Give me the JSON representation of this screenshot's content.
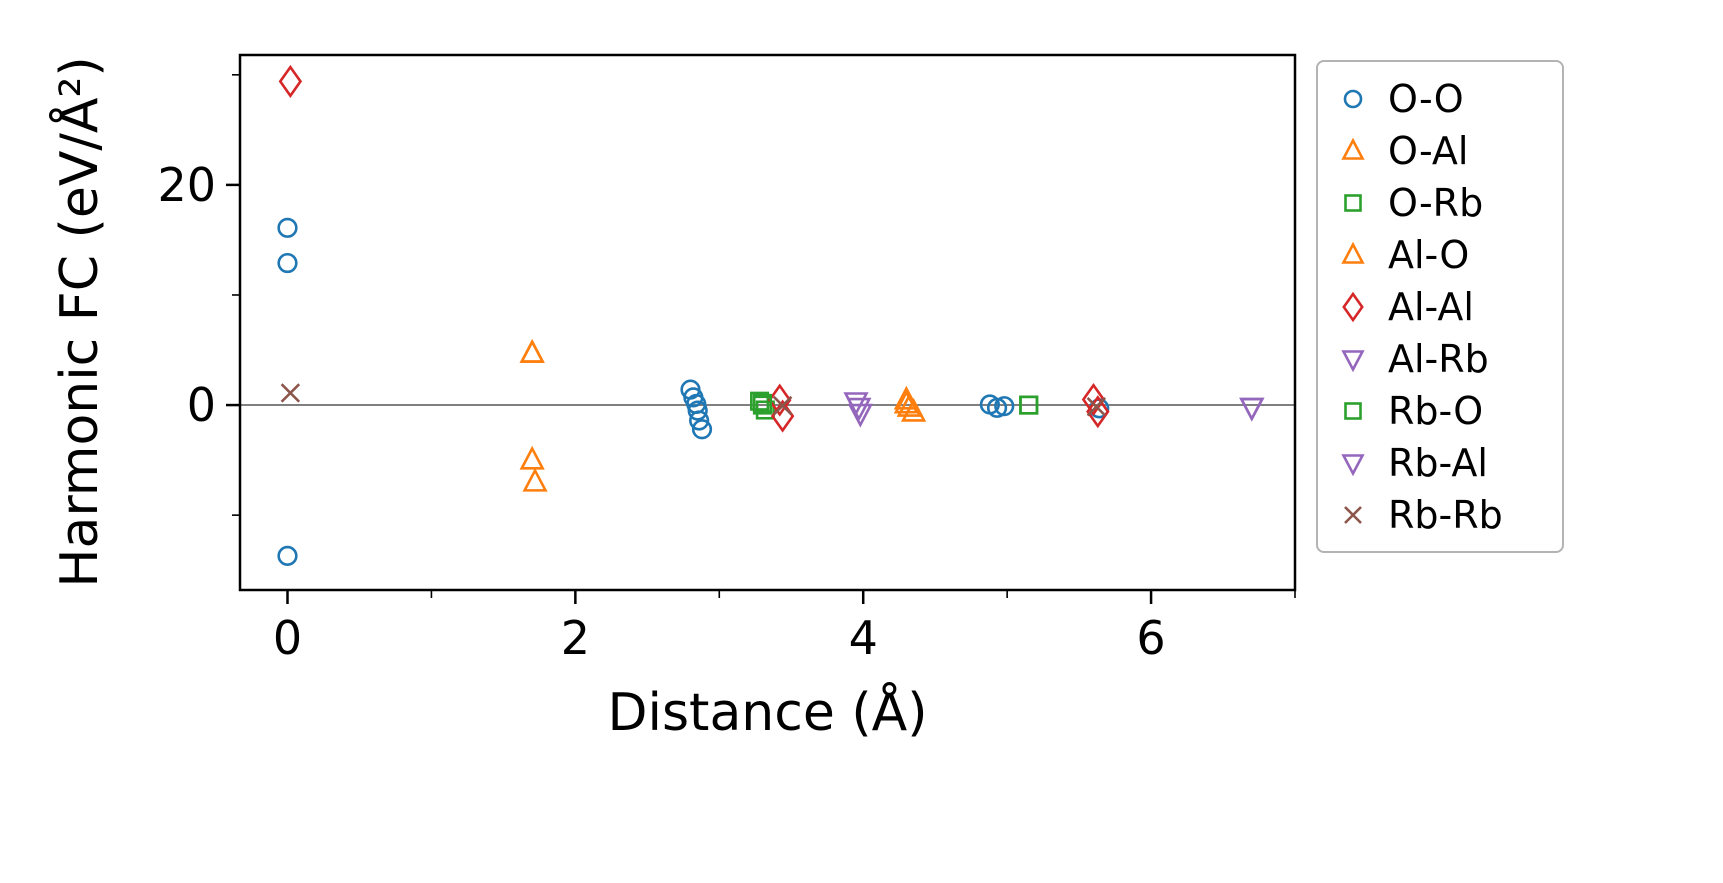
{
  "chart_data": {
    "type": "scatter",
    "title": "",
    "xlabel": "Distance (Å)",
    "ylabel": "Harmonic FC (eV/Å²)",
    "xlim": [
      -0.33,
      7.0
    ],
    "ylim": [
      -16.8,
      31.8
    ],
    "x_ticks": [
      {
        "value": 0,
        "label": "0"
      },
      {
        "value": 2,
        "label": "2"
      },
      {
        "value": 4,
        "label": "4"
      },
      {
        "value": 6,
        "label": "6"
      }
    ],
    "x_minor_ticks": [
      1,
      3,
      5,
      7
    ],
    "y_ticks": [
      {
        "value": 0,
        "label": "0"
      },
      {
        "value": 20,
        "label": "20"
      }
    ],
    "y_minor_ticks": [
      -10,
      10,
      30
    ],
    "grid": false,
    "zero_line": true,
    "zero_line_color": "#808080",
    "axis_color": "#000000",
    "legend_position": "outside-right",
    "series": [
      {
        "name": "O-O",
        "marker": "circle",
        "color": "#1f77b4",
        "points": [
          [
            0.0,
            16.1
          ],
          [
            0.0,
            12.9
          ],
          [
            0.0,
            -13.7
          ],
          [
            2.8,
            1.4
          ],
          [
            2.82,
            0.7
          ],
          [
            2.84,
            0.1
          ],
          [
            2.85,
            -0.5
          ],
          [
            2.86,
            -1.4
          ],
          [
            2.88,
            -2.2
          ],
          [
            4.88,
            0.05
          ],
          [
            4.93,
            -0.25
          ],
          [
            4.98,
            -0.1
          ],
          [
            5.64,
            -0.3
          ]
        ]
      },
      {
        "name": "O-Al",
        "marker": "triangle-up",
        "color": "#ff7f0e",
        "points": [
          [
            1.7,
            4.7
          ],
          [
            1.7,
            -5.0
          ],
          [
            1.72,
            -7.0
          ],
          [
            4.3,
            0.45
          ],
          [
            4.32,
            -0.2
          ],
          [
            4.35,
            -0.65
          ]
        ]
      },
      {
        "name": "O-Rb",
        "marker": "square",
        "color": "#2ca02c",
        "points": [
          [
            3.28,
            0.35
          ],
          [
            3.3,
            0.0
          ],
          [
            3.32,
            -0.45
          ],
          [
            5.15,
            0.0
          ]
        ]
      },
      {
        "name": "Al-O",
        "marker": "triangle-up",
        "color": "#ff7f0e",
        "points": [
          [
            1.7,
            4.7
          ],
          [
            4.3,
            0.1
          ]
        ]
      },
      {
        "name": "Al-Al",
        "marker": "diamond",
        "color": "#d62728",
        "points": [
          [
            0.02,
            29.4
          ],
          [
            3.42,
            0.45
          ],
          [
            3.44,
            -1.0
          ],
          [
            5.6,
            0.5
          ],
          [
            5.63,
            -0.6
          ]
        ]
      },
      {
        "name": "Al-Rb",
        "marker": "triangle-down",
        "color": "#9467bd",
        "points": [
          [
            3.95,
            0.3
          ],
          [
            3.98,
            -0.75
          ],
          [
            6.7,
            -0.2
          ]
        ]
      },
      {
        "name": "Rb-O",
        "marker": "square",
        "color": "#2ca02c",
        "points": [
          [
            3.3,
            0.15
          ],
          [
            5.15,
            0.0
          ]
        ]
      },
      {
        "name": "Rb-Al",
        "marker": "triangle-down",
        "color": "#9467bd",
        "points": [
          [
            3.97,
            -0.2
          ],
          [
            6.7,
            -0.2
          ]
        ]
      },
      {
        "name": "Rb-Rb",
        "marker": "x",
        "color": "#8c564b",
        "points": [
          [
            0.02,
            1.1
          ],
          [
            3.44,
            -0.05
          ],
          [
            5.62,
            -0.15
          ]
        ]
      }
    ]
  }
}
